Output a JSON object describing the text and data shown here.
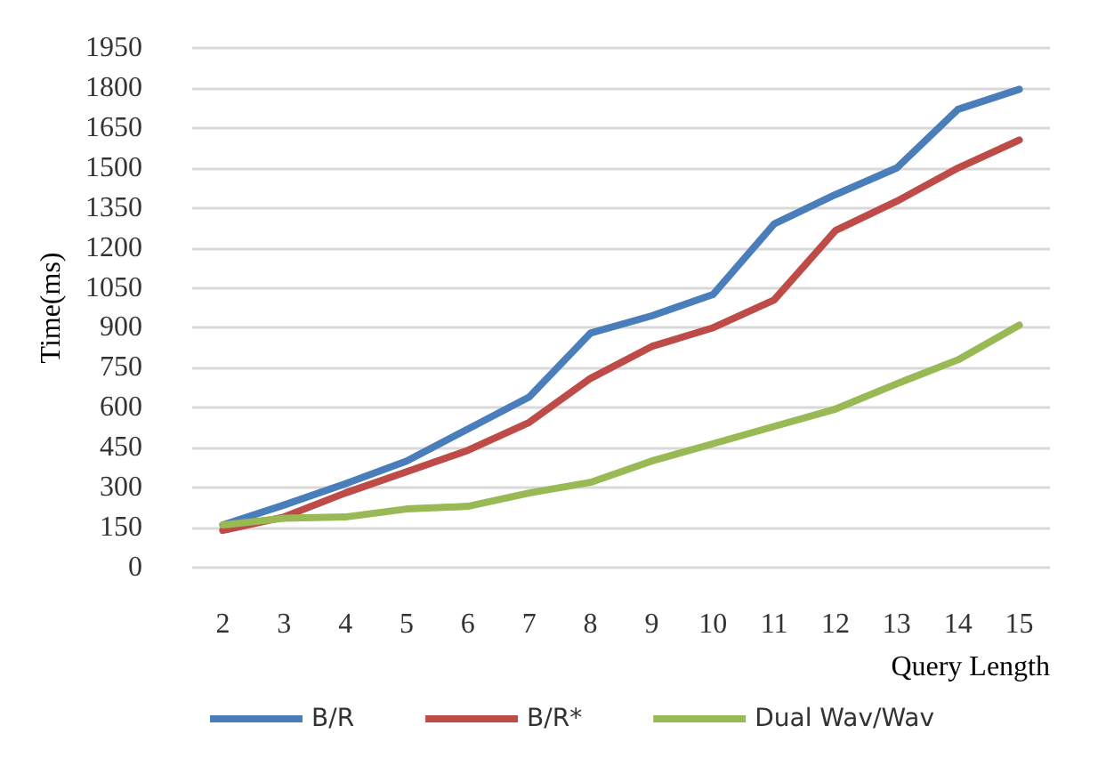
{
  "chart_data": {
    "type": "line",
    "xlabel": "Query Length",
    "ylabel": "Time(ms)",
    "categories": [
      "2",
      "3",
      "4",
      "5",
      "6",
      "7",
      "8",
      "9",
      "10",
      "11",
      "12",
      "13",
      "14",
      "15"
    ],
    "series": [
      {
        "name": "B/R",
        "color": "#4a7ebb",
        "values": [
          160,
          235,
          315,
          400,
          520,
          640,
          880,
          945,
          1025,
          1290,
          1400,
          1500,
          1720,
          1795
        ]
      },
      {
        "name": "B/R*",
        "color": "#be4b48",
        "values": [
          140,
          190,
          280,
          360,
          440,
          545,
          710,
          830,
          900,
          1005,
          1265,
          1375,
          1500,
          1605
        ]
      },
      {
        "name": "Dual Wav/Wav",
        "color": "#98b954",
        "values": [
          160,
          185,
          190,
          220,
          230,
          280,
          320,
          400,
          465,
          530,
          595,
          690,
          780,
          910
        ]
      }
    ],
    "ylim": [
      0,
      1950
    ],
    "yticks": [
      0,
      150,
      300,
      450,
      600,
      750,
      900,
      1050,
      1200,
      1350,
      1500,
      1650,
      1800,
      1950
    ],
    "grid": "y",
    "legend": "bottom",
    "marker": "none",
    "line_style": "solid"
  }
}
